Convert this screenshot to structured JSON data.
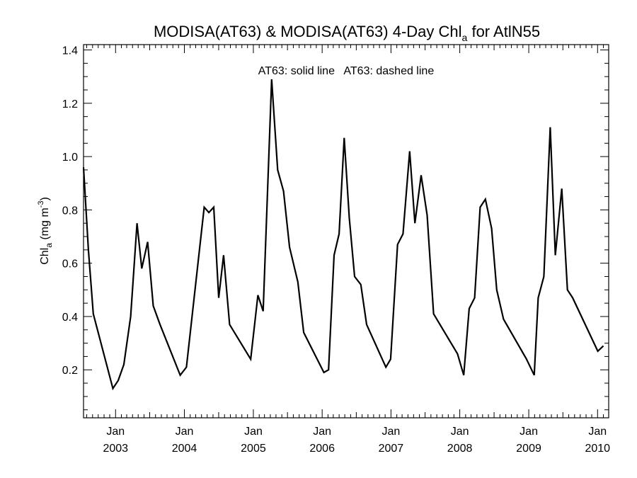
{
  "chart_data": {
    "type": "line",
    "title_main": "MODISA(AT63) & MODISA(AT63) 4-Day Chl",
    "title_sub": "a",
    "title_tail": " for AtlN55",
    "ylabel_main": "Chl",
    "ylabel_sub": "a",
    "ylabel_unit": " (mg m",
    "ylabel_exp": "-3",
    "ylabel_close": ")",
    "annotation": "AT63: solid line   AT63: dashed line",
    "ylim": [
      0.02,
      1.42
    ],
    "yticks": [
      0.2,
      0.4,
      0.6,
      0.8,
      1.0,
      1.2,
      1.4
    ],
    "ytick_labels": [
      "0.2",
      "0.4",
      "0.6",
      "0.8",
      "1.0",
      "1.2",
      "1.4"
    ],
    "xlim": [
      "2002-07-15",
      "2010-03-01"
    ],
    "xticks": [
      {
        "date": "2003-01-01",
        "month": "Jan",
        "year": "2003"
      },
      {
        "date": "2004-01-01",
        "month": "Jan",
        "year": "2004"
      },
      {
        "date": "2005-01-01",
        "month": "Jan",
        "year": "2005"
      },
      {
        "date": "2006-01-01",
        "month": "Jan",
        "year": "2006"
      },
      {
        "date": "2007-01-01",
        "month": "Jan",
        "year": "2007"
      },
      {
        "date": "2008-01-01",
        "month": "Jan",
        "year": "2008"
      },
      {
        "date": "2009-01-01",
        "month": "Jan",
        "year": "2009"
      },
      {
        "date": "2010-01-01",
        "month": "Jan",
        "year": "2010"
      }
    ],
    "grid": false,
    "series": [
      {
        "style": "solid",
        "color": "#000000",
        "points": [
          [
            "2002-07-15",
            0.96
          ],
          [
            "2002-08-10",
            0.65
          ],
          [
            "2002-09-05",
            0.41
          ],
          [
            "2002-12-18",
            0.13
          ],
          [
            "2003-01-15",
            0.16
          ],
          [
            "2003-02-14",
            0.22
          ],
          [
            "2003-03-22",
            0.4
          ],
          [
            "2003-04-25",
            0.75
          ],
          [
            "2003-05-20",
            0.58
          ],
          [
            "2003-06-20",
            0.68
          ],
          [
            "2003-07-20",
            0.44
          ],
          [
            "2003-08-25",
            0.37
          ],
          [
            "2003-12-10",
            0.18
          ],
          [
            "2004-01-12",
            0.21
          ],
          [
            "2004-04-15",
            0.81
          ],
          [
            "2004-05-10",
            0.79
          ],
          [
            "2004-06-05",
            0.81
          ],
          [
            "2004-07-01",
            0.47
          ],
          [
            "2004-07-27",
            0.63
          ],
          [
            "2004-08-28",
            0.37
          ],
          [
            "2004-12-18",
            0.24
          ],
          [
            "2005-01-25",
            0.48
          ],
          [
            "2005-02-22",
            0.42
          ],
          [
            "2005-04-08",
            1.29
          ],
          [
            "2005-05-10",
            0.95
          ],
          [
            "2005-06-10",
            0.87
          ],
          [
            "2005-07-12",
            0.66
          ],
          [
            "2005-08-25",
            0.53
          ],
          [
            "2005-09-25",
            0.34
          ],
          [
            "2006-01-10",
            0.19
          ],
          [
            "2006-02-04",
            0.2
          ],
          [
            "2006-03-05",
            0.63
          ],
          [
            "2006-04-01",
            0.71
          ],
          [
            "2006-04-28",
            1.07
          ],
          [
            "2006-05-25",
            0.77
          ],
          [
            "2006-06-22",
            0.55
          ],
          [
            "2006-07-25",
            0.52
          ],
          [
            "2006-08-25",
            0.37
          ],
          [
            "2006-12-05",
            0.21
          ],
          [
            "2006-12-30",
            0.24
          ],
          [
            "2007-02-05",
            0.67
          ],
          [
            "2007-03-06",
            0.71
          ],
          [
            "2007-04-10",
            1.02
          ],
          [
            "2007-05-08",
            0.75
          ],
          [
            "2007-06-10",
            0.93
          ],
          [
            "2007-07-12",
            0.78
          ],
          [
            "2007-08-15",
            0.41
          ],
          [
            "2007-12-20",
            0.26
          ],
          [
            "2008-01-22",
            0.18
          ],
          [
            "2008-02-20",
            0.43
          ],
          [
            "2008-03-20",
            0.47
          ],
          [
            "2008-04-18",
            0.81
          ],
          [
            "2008-05-16",
            0.84
          ],
          [
            "2008-06-18",
            0.73
          ],
          [
            "2008-07-15",
            0.5
          ],
          [
            "2008-08-20",
            0.39
          ],
          [
            "2008-12-20",
            0.24
          ],
          [
            "2009-01-30",
            0.18
          ],
          [
            "2009-02-20",
            0.47
          ],
          [
            "2009-03-22",
            0.55
          ],
          [
            "2009-04-25",
            1.11
          ],
          [
            "2009-05-22",
            0.63
          ],
          [
            "2009-06-25",
            0.88
          ],
          [
            "2009-07-25",
            0.5
          ],
          [
            "2009-08-22",
            0.47
          ],
          [
            "2010-01-02",
            0.27
          ],
          [
            "2010-02-01",
            0.29
          ]
        ]
      }
    ]
  }
}
